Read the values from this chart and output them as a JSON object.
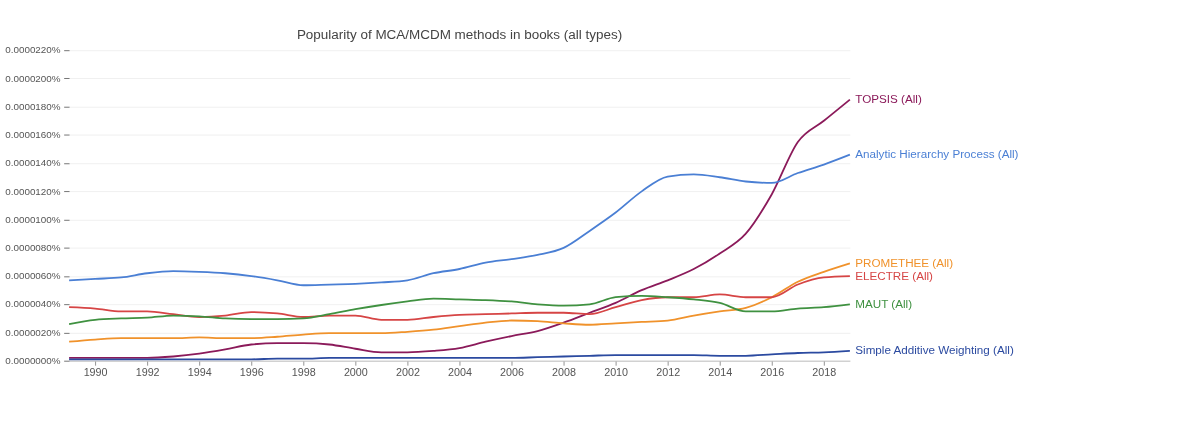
{
  "chart_data": {
    "type": "line",
    "title": "Popularity of MCA/MCDM methods in books (all types)",
    "x": [
      1989,
      1990,
      1991,
      1992,
      1993,
      1994,
      1995,
      1996,
      1997,
      1998,
      1999,
      2000,
      2001,
      2002,
      2003,
      2004,
      2005,
      2006,
      2007,
      2008,
      2009,
      2010,
      2011,
      2012,
      2013,
      2014,
      2015,
      2016,
      2017,
      2018,
      2019
    ],
    "series": [
      {
        "name": "TOPSIS (All)",
        "color": "#8b1a5a",
        "values": [
          2e-07,
          2e-07,
          2e-07,
          2e-07,
          3e-07,
          5e-07,
          8e-07,
          1.15e-06,
          1.25e-06,
          1.25e-06,
          1.15e-06,
          8.5e-07,
          6e-07,
          6e-07,
          7e-07,
          9e-07,
          1.35e-06,
          1.75e-06,
          2.1e-06,
          2.7e-06,
          3.4e-06,
          4.1e-06,
          5e-06,
          5.7e-06,
          6.5e-06,
          7.6e-06,
          9e-06,
          1.18e-05,
          1.55e-05,
          1.7e-05,
          1.85e-05
        ]
      },
      {
        "name": "Analytic Hierarchy Process (All)",
        "color": "#4a7fd4",
        "values": [
          5.7e-06,
          5.8e-06,
          5.9e-06,
          6.2e-06,
          6.35e-06,
          6.3e-06,
          6.2e-06,
          6e-06,
          5.7e-06,
          5.35e-06,
          5.4e-06,
          5.45e-06,
          5.55e-06,
          5.7e-06,
          6.2e-06,
          6.5e-06,
          6.95e-06,
          7.2e-06,
          7.5e-06,
          8e-06,
          9.2e-06,
          1.05e-05,
          1.2e-05,
          1.305e-05,
          1.32e-05,
          1.3e-05,
          1.27e-05,
          1.26e-05,
          1.33e-05,
          1.39e-05,
          1.46e-05
        ]
      },
      {
        "name": "PROMETHEE (All)",
        "color": "#f0922b",
        "values": [
          1.35e-06,
          1.5e-06,
          1.6e-06,
          1.6e-06,
          1.6e-06,
          1.65e-06,
          1.6e-06,
          1.6e-06,
          1.7e-06,
          1.85e-06,
          1.95e-06,
          1.95e-06,
          1.95e-06,
          2.05e-06,
          2.2e-06,
          2.45e-06,
          2.7e-06,
          2.85e-06,
          2.8e-06,
          2.65e-06,
          2.55e-06,
          2.65e-06,
          2.75e-06,
          2.85e-06,
          3.2e-06,
          3.5e-06,
          3.75e-06,
          4.5e-06,
          5.6e-06,
          6.3e-06,
          6.9e-06
        ]
      },
      {
        "name": "ELECTRE (All)",
        "color": "#d64545",
        "values": [
          3.8e-06,
          3.7e-06,
          3.5e-06,
          3.5e-06,
          3.3e-06,
          3.1e-06,
          3.2e-06,
          3.45e-06,
          3.35e-06,
          3.1e-06,
          3.2e-06,
          3.2e-06,
          2.9e-06,
          2.9e-06,
          3.1e-06,
          3.25e-06,
          3.3e-06,
          3.35e-06,
          3.4e-06,
          3.4e-06,
          3.3e-06,
          3.8e-06,
          4.3e-06,
          4.5e-06,
          4.5e-06,
          4.7e-06,
          4.5e-06,
          4.5e-06,
          5.4e-06,
          5.9e-06,
          6e-06
        ]
      },
      {
        "name": "MAUT (All)",
        "color": "#3f9140",
        "values": [
          2.6e-06,
          2.9e-06,
          3e-06,
          3.05e-06,
          3.2e-06,
          3.15e-06,
          3e-06,
          2.95e-06,
          2.95e-06,
          3e-06,
          3.3e-06,
          3.65e-06,
          3.95e-06,
          4.2e-06,
          4.4e-06,
          4.35e-06,
          4.3e-06,
          4.2e-06,
          4e-06,
          3.9e-06,
          4e-06,
          4.5e-06,
          4.6e-06,
          4.5e-06,
          4.35e-06,
          4.1e-06,
          3.5e-06,
          3.5e-06,
          3.7e-06,
          3.8e-06,
          4e-06
        ]
      },
      {
        "name": "Simple Additive Weighting (All)",
        "color": "#2b4aa0",
        "values": [
          1e-07,
          1e-07,
          1e-07,
          1e-07,
          1e-07,
          1e-07,
          1e-07,
          1e-07,
          1.5e-07,
          1.5e-07,
          2e-07,
          2e-07,
          2e-07,
          2e-07,
          2e-07,
          2e-07,
          2e-07,
          2e-07,
          2.5e-07,
          3e-07,
          3.5e-07,
          4e-07,
          4e-07,
          4e-07,
          4e-07,
          3.5e-07,
          3.5e-07,
          4.5e-07,
          5.5e-07,
          6e-07,
          7e-07
        ]
      }
    ],
    "xlim": [
      1989,
      2019
    ],
    "xticks": [
      1990,
      1992,
      1994,
      1996,
      1998,
      2000,
      2002,
      2004,
      2006,
      2008,
      2010,
      2012,
      2014,
      2016,
      2018
    ],
    "ylim": [
      0,
      2.2e-05
    ],
    "yticks": [
      {
        "value": 0,
        "label": "0.0000000%"
      },
      {
        "value": 2e-06,
        "label": "0.0000020%"
      },
      {
        "value": 4e-06,
        "label": "0.0000040%"
      },
      {
        "value": 6e-06,
        "label": "0.0000060%"
      },
      {
        "value": 8e-06,
        "label": "0.0000080%"
      },
      {
        "value": 1e-05,
        "label": "0.0000100%"
      },
      {
        "value": 1.2e-05,
        "label": "0.0000120%"
      },
      {
        "value": 1.4e-05,
        "label": "0.0000140%"
      },
      {
        "value": 1.6e-05,
        "label": "0.0000160%"
      },
      {
        "value": 1.8e-05,
        "label": "0.0000180%"
      },
      {
        "value": 2e-05,
        "label": "0.0000200%"
      },
      {
        "value": 2.2e-05,
        "label": "0.0000220%"
      }
    ],
    "grid": "y",
    "legend": false,
    "line_style": "solid",
    "marker": "none"
  }
}
